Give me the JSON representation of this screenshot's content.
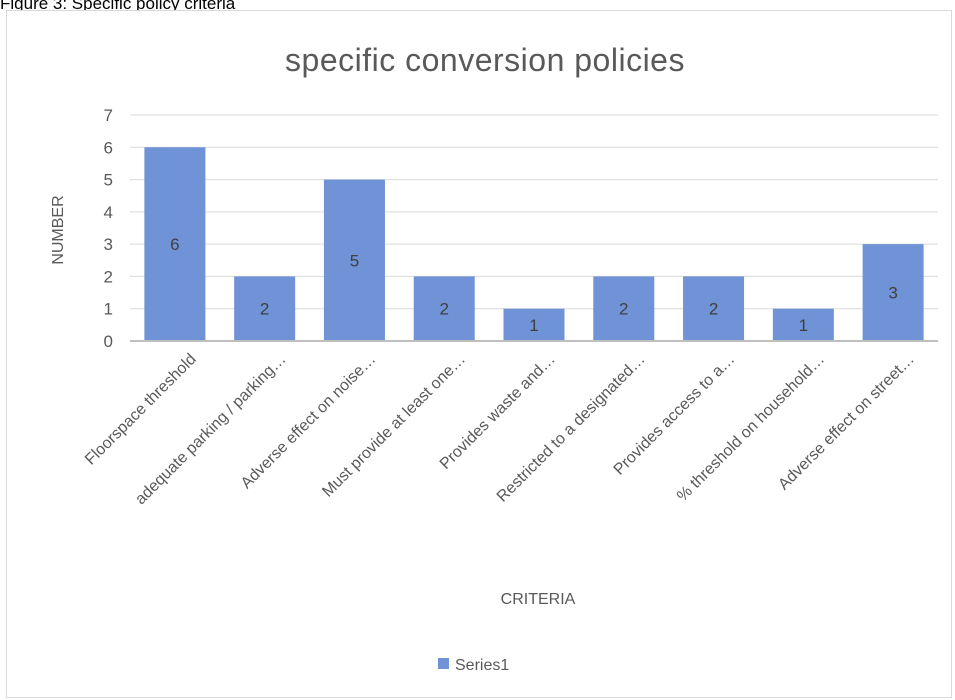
{
  "caption": "Figure 3: Specific policy criteria",
  "chart_data": {
    "type": "bar",
    "title": "specific conversion policies",
    "xlabel": "CRITERIA",
    "ylabel": "NUMBER",
    "categories": [
      "Floorspace threshold",
      "adequate parking / parking…",
      "Adverse effect on noise…",
      "Must provide at least one…",
      "Provides waste and…",
      "Restricted to a designated…",
      "Provides access to a…",
      "% threshold on household…",
      "Adverse effect on street…"
    ],
    "series": [
      {
        "name": "Series1",
        "values": [
          6,
          2,
          5,
          2,
          1,
          2,
          2,
          1,
          3
        ]
      }
    ],
    "ylim": [
      0,
      7
    ],
    "yticks": [
      "0",
      "1",
      "2",
      "3",
      "4",
      "5",
      "6",
      "7"
    ],
    "grid": true,
    "data_labels": true,
    "legend_position": "bottom",
    "colors": {
      "bar": "#6f93d6",
      "grid": "#d9d9d9",
      "axis": "#bfbfbf"
    }
  }
}
